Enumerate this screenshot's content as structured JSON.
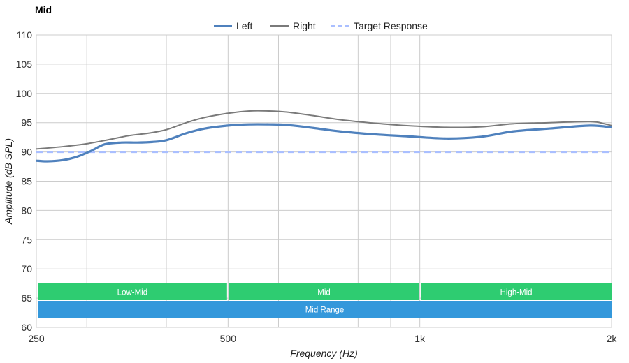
{
  "title": "Mid",
  "colors": {
    "left": "#4f81bd",
    "right": "#7a7a7a",
    "target": "#aabfff",
    "band_sub": "#2ecc71",
    "band_main": "#3498db",
    "grid": "#cccccc"
  },
  "chart_data": {
    "type": "line",
    "title": "Mid",
    "xlabel": "Frequency (Hz)",
    "ylabel": "Amplitude (dB SPL)",
    "x_scale": "log",
    "xlim": [
      250,
      2000
    ],
    "ylim": [
      60,
      110
    ],
    "x_ticks": [
      250,
      500,
      1000,
      2000
    ],
    "x_tick_labels": [
      "250",
      "500",
      "1k",
      "2k"
    ],
    "y_ticks": [
      60,
      65,
      70,
      75,
      80,
      85,
      90,
      95,
      100,
      105,
      110
    ],
    "grid": true,
    "legend": "top-center",
    "series": [
      {
        "name": "Left",
        "x": [
          250,
          260,
          275,
          290,
          305,
          320,
          340,
          360,
          380,
          400,
          430,
          460,
          500,
          540,
          580,
          620,
          680,
          750,
          850,
          950,
          1100,
          1250,
          1400,
          1600,
          1850,
          2000
        ],
        "y": [
          88.5,
          88.4,
          88.6,
          89.2,
          90.2,
          91.3,
          91.6,
          91.6,
          91.7,
          92.0,
          93.2,
          94.0,
          94.5,
          94.7,
          94.7,
          94.6,
          94.1,
          93.5,
          93.0,
          92.7,
          92.3,
          92.6,
          93.5,
          94.0,
          94.5,
          94.2
        ]
      },
      {
        "name": "Right",
        "x": [
          250,
          275,
          300,
          325,
          350,
          375,
          400,
          430,
          460,
          500,
          540,
          580,
          620,
          680,
          750,
          850,
          950,
          1100,
          1250,
          1400,
          1600,
          1850,
          1950,
          2000
        ],
        "y": [
          90.5,
          90.9,
          91.4,
          92.1,
          92.8,
          93.2,
          93.8,
          95.0,
          95.9,
          96.6,
          97.0,
          97.0,
          96.8,
          96.2,
          95.5,
          94.9,
          94.5,
          94.2,
          94.3,
          94.8,
          95.0,
          95.2,
          94.8,
          94.5
        ]
      },
      {
        "name": "Target Response",
        "x": [
          250,
          2000
        ],
        "y": [
          90,
          90
        ]
      }
    ],
    "bands": [
      {
        "label": "Low-Mid",
        "x0": 250,
        "x1": 500,
        "row": 1
      },
      {
        "label": "Mid",
        "x0": 500,
        "x1": 1000,
        "row": 1
      },
      {
        "label": "High-Mid",
        "x0": 1000,
        "x1": 2000,
        "row": 1
      },
      {
        "label": "Mid Range",
        "x0": 250,
        "x1": 2000,
        "row": 2
      }
    ]
  }
}
